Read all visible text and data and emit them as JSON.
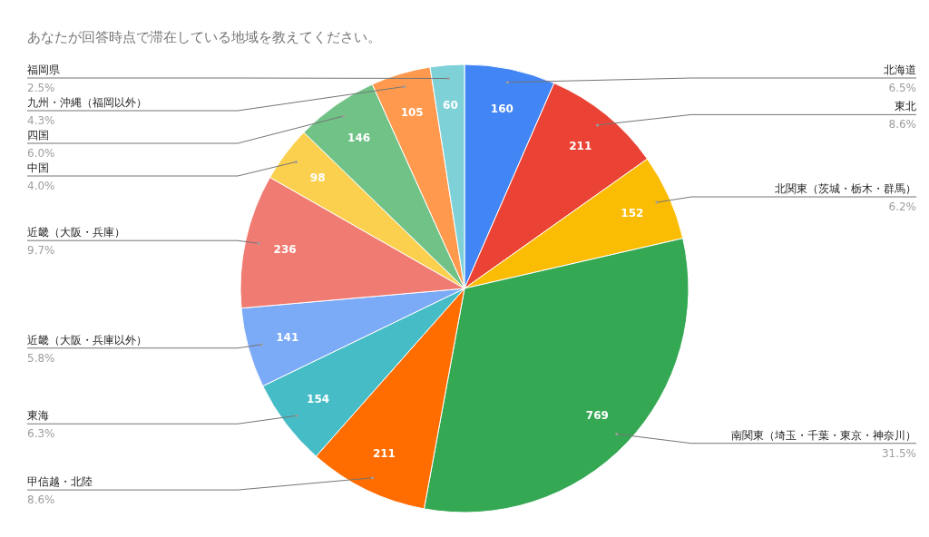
{
  "chart_data": {
    "type": "pie",
    "title": "あなたが回答時点で滞在している地域を教えてください。",
    "categories": [
      "北海道",
      "東北",
      "北関東（茨城・栃木・群馬）",
      "南関東（埼玉・千葉・東京・神奈川）",
      "甲信越・北陸",
      "東海",
      "近畿（大阪・兵庫以外）",
      "近畿（大阪・兵庫）",
      "中国",
      "四国",
      "九州・沖縄（福岡以外）",
      "福岡県"
    ],
    "values": [
      160,
      211,
      152,
      769,
      211,
      154,
      141,
      236,
      98,
      146,
      105,
      60
    ],
    "colors": [
      "#4285f4",
      "#ea4335",
      "#fbbc04",
      "#34a853",
      "#ff6d01",
      "#46bdc6",
      "#7baaf7",
      "#f07b72",
      "#fcd04f",
      "#71c287",
      "#ff994d",
      "#7ed1d7"
    ],
    "data_labels": true,
    "annotations": [
      {
        "text": "6.5%",
        "x": "北海道"
      },
      {
        "text": "8.6%",
        "x": "東北"
      },
      {
        "text": "6.2%",
        "x": "北関東（茨城・栃木・群馬）"
      },
      {
        "text": "31.5%",
        "x": "南関東（埼玉・千葉・東京・神奈川）"
      },
      {
        "text": "8.6%",
        "x": "甲信越・北陸"
      },
      {
        "text": "6.3%",
        "x": "東海"
      },
      {
        "text": "5.8%",
        "x": "近畿（大阪・兵庫以外）"
      },
      {
        "text": "9.7%",
        "x": "近畿（大阪・兵庫）"
      },
      {
        "text": "4.0%",
        "x": "中国"
      },
      {
        "text": "6.0%",
        "x": "四国"
      },
      {
        "text": "4.3%",
        "x": "九州・沖縄（福岡以外）"
      },
      {
        "text": "2.5%",
        "x": "福岡県"
      }
    ]
  }
}
